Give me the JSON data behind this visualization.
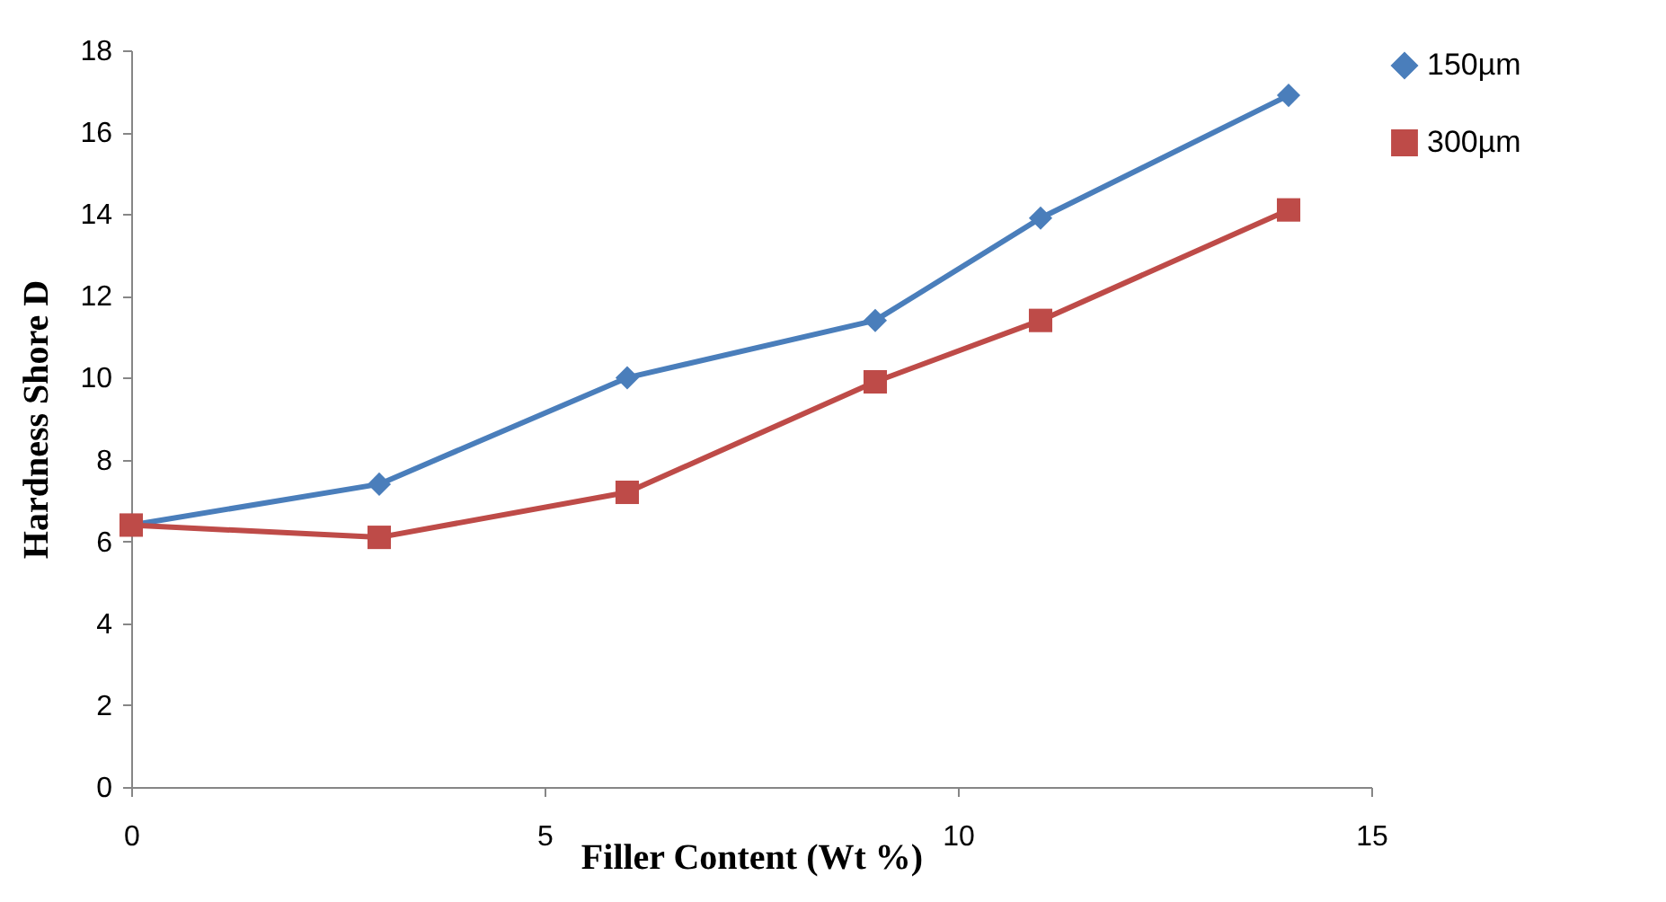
{
  "chart_data": {
    "type": "line",
    "xlabel": "Filler Content (Wt %)",
    "ylabel": "Hardness Shore D",
    "x": [
      0,
      3,
      6,
      9,
      11,
      14
    ],
    "series": [
      {
        "name": "150µm",
        "color": "#4a7ebb",
        "marker": "diamond",
        "values": [
          6.4,
          7.4,
          10.0,
          11.4,
          13.9,
          16.9
        ]
      },
      {
        "name": "300µm",
        "color": "#be4b48",
        "marker": "square",
        "values": [
          6.4,
          6.1,
          7.2,
          9.9,
          11.4,
          14.1
        ]
      }
    ],
    "xlim": [
      0,
      15
    ],
    "xticks": [
      0,
      5,
      10,
      15
    ],
    "ylim": [
      0,
      18
    ],
    "yticks": [
      0,
      2,
      4,
      6,
      8,
      10,
      12,
      14,
      16,
      18
    ],
    "grid": false,
    "legend": "right",
    "line_style": "solid"
  }
}
